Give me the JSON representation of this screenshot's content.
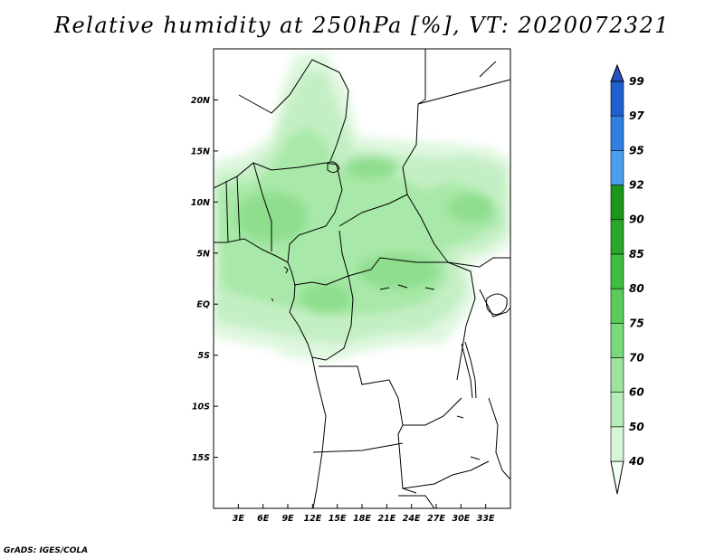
{
  "title": "Relative humidity at 250hPa [%], VT: 2020072321",
  "credit": "GrADS: IGES/COLA",
  "map": {
    "lon_range": [
      0,
      36
    ],
    "lat_range": [
      -20,
      25
    ],
    "x_ticks": [
      {
        "value": 3,
        "label": "3E"
      },
      {
        "value": 6,
        "label": "6E"
      },
      {
        "value": 9,
        "label": "9E"
      },
      {
        "value": 12,
        "label": "12E"
      },
      {
        "value": 15,
        "label": "15E"
      },
      {
        "value": 18,
        "label": "18E"
      },
      {
        "value": 21,
        "label": "21E"
      },
      {
        "value": 24,
        "label": "24E"
      },
      {
        "value": 27,
        "label": "27E"
      },
      {
        "value": 30,
        "label": "30E"
      },
      {
        "value": 33,
        "label": "33E"
      }
    ],
    "y_ticks": [
      {
        "value": 20,
        "label": "20N"
      },
      {
        "value": 15,
        "label": "15N"
      },
      {
        "value": 10,
        "label": "10N"
      },
      {
        "value": 5,
        "label": "5N"
      },
      {
        "value": 0,
        "label": "EQ"
      },
      {
        "value": -5,
        "label": "5S"
      },
      {
        "value": -10,
        "label": "10S"
      },
      {
        "value": -15,
        "label": "15S"
      }
    ]
  },
  "colorbar": {
    "levels": [
      "40",
      "50",
      "60",
      "70",
      "75",
      "80",
      "85",
      "90",
      "92",
      "95",
      "97",
      "99"
    ],
    "colors": [
      "#f0fff0",
      "#d6f5d6",
      "#b8ecb8",
      "#9ce39c",
      "#7ad97a",
      "#5acc5a",
      "#3fbf3f",
      "#2aa82a",
      "#1a961a",
      "#4a9ff0",
      "#2f7fe0",
      "#1f5fd0",
      "#2a4fc0"
    ]
  }
}
